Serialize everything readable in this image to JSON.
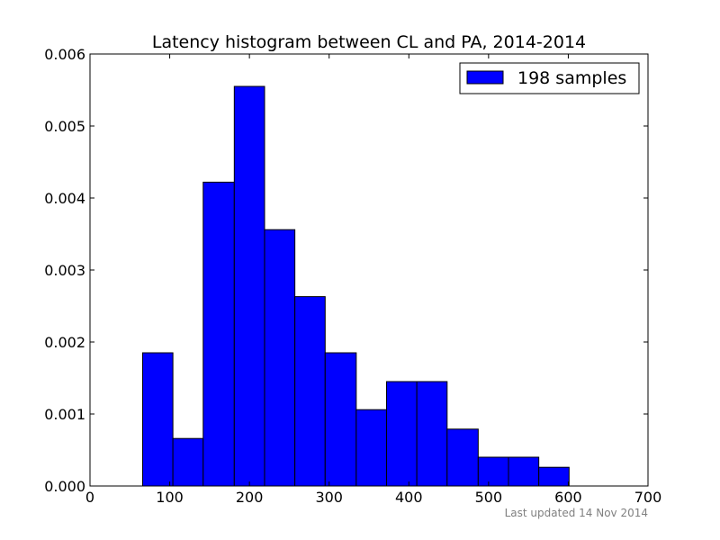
{
  "chart_data": {
    "type": "bar",
    "title": "Latency histogram between CL and PA, 2014-2014",
    "xlabel": "",
    "ylabel": "",
    "xlim": [
      0,
      700
    ],
    "ylim": [
      0,
      0.006
    ],
    "x_ticks": [
      "0",
      "100",
      "200",
      "300",
      "400",
      "500",
      "600",
      "700"
    ],
    "y_ticks": [
      "0.000",
      "0.001",
      "0.002",
      "0.003",
      "0.004",
      "0.005",
      "0.006"
    ],
    "grid": false,
    "legend_position": "top-right",
    "series": [
      {
        "name": "198 samples",
        "color": "#0000ff",
        "bins": [
          {
            "x0": 66,
            "x1": 104,
            "value": 0.00185
          },
          {
            "x0": 104,
            "x1": 142,
            "value": 0.00066
          },
          {
            "x0": 142,
            "x1": 181,
            "value": 0.00422
          },
          {
            "x0": 181,
            "x1": 219,
            "value": 0.00555
          },
          {
            "x0": 219,
            "x1": 257,
            "value": 0.00356
          },
          {
            "x0": 257,
            "x1": 295,
            "value": 0.00263
          },
          {
            "x0": 295,
            "x1": 334,
            "value": 0.00185
          },
          {
            "x0": 334,
            "x1": 372,
            "value": 0.00106
          },
          {
            "x0": 372,
            "x1": 410,
            "value": 0.00145
          },
          {
            "x0": 410,
            "x1": 448,
            "value": 0.00145
          },
          {
            "x0": 448,
            "x1": 487,
            "value": 0.00079
          },
          {
            "x0": 487,
            "x1": 525,
            "value": 0.0004
          },
          {
            "x0": 525,
            "x1": 563,
            "value": 0.0004
          },
          {
            "x0": 563,
            "x1": 601,
            "value": 0.00026
          }
        ]
      }
    ],
    "footnote": "Last updated 14 Nov 2014"
  }
}
